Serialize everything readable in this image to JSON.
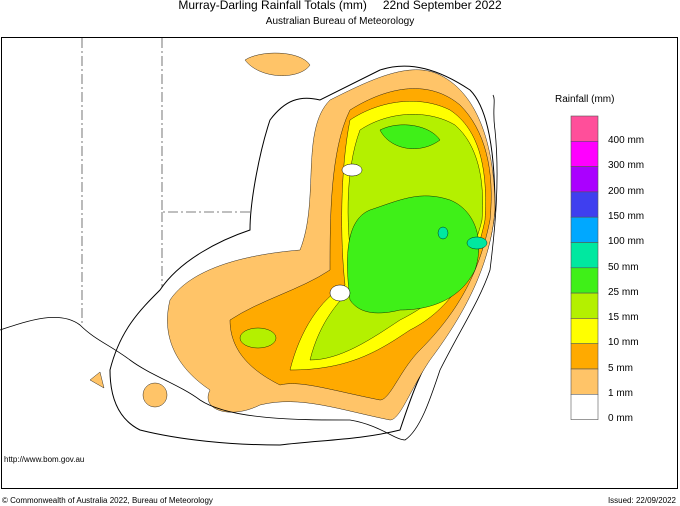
{
  "title": {
    "main": "Murray-Darling Rainfall Totals (mm)",
    "date": "22nd September 2022",
    "subtitle": "Australian Bureau of Meteorology"
  },
  "legend": {
    "title": "Rainfall (mm)",
    "bins": [
      {
        "color": "#ff4f9a"
      },
      {
        "color": "#ff00ff"
      },
      {
        "color": "#aa00ff"
      },
      {
        "color": "#3f3fef"
      },
      {
        "color": "#00a8ff"
      },
      {
        "color": "#00e8a0"
      },
      {
        "color": "#3ff018"
      },
      {
        "color": "#b4f000"
      },
      {
        "color": "#ffff00"
      },
      {
        "color": "#ffaa00"
      },
      {
        "color": "#ffc468"
      },
      {
        "color": "#ffffff"
      }
    ],
    "labels": [
      "400 mm",
      "300 mm",
      "200 mm",
      "150 mm",
      "100 mm",
      "50 mm",
      "25 mm",
      "15 mm",
      "10 mm",
      "5 mm",
      "1 mm",
      "0 mm"
    ]
  },
  "footer": {
    "url": "http://www.bom.gov.au",
    "copyright": "© Commonwealth of Australia 2022, Bureau of Meteorology",
    "issued": "Issued: 22/09/2022"
  }
}
